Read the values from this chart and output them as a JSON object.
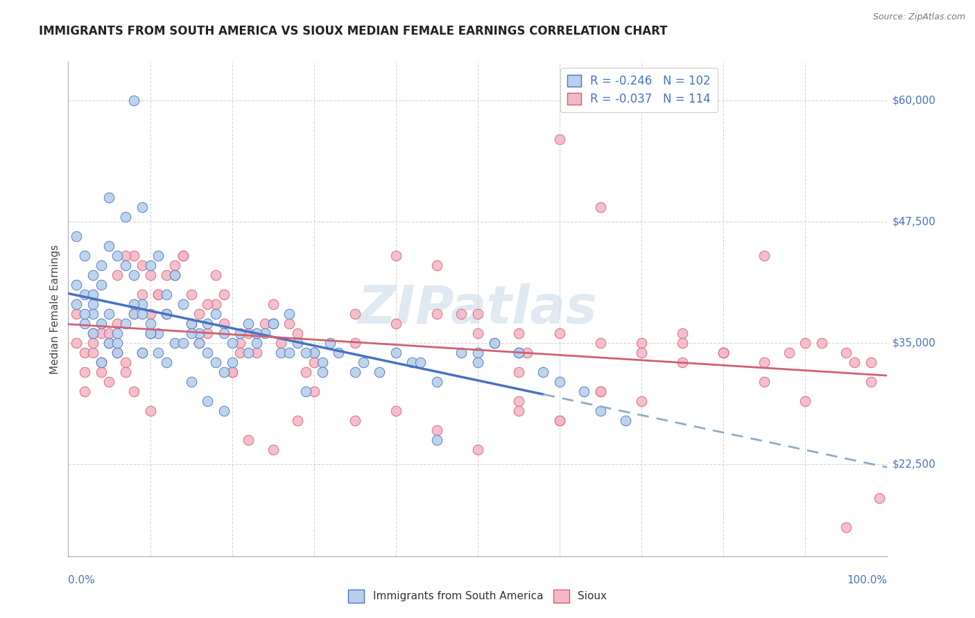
{
  "title": "IMMIGRANTS FROM SOUTH AMERICA VS SIOUX MEDIAN FEMALE EARNINGS CORRELATION CHART",
  "source": "Source: ZipAtlas.com",
  "ylabel": "Median Female Earnings",
  "ylim": [
    13000,
    64000
  ],
  "xlim": [
    0.0,
    1.0
  ],
  "legend_r1": "-0.246",
  "legend_n1": "102",
  "legend_r2": "-0.037",
  "legend_n2": "114",
  "color_blue_fill": "#b8d0ea",
  "color_blue_line": "#4472c4",
  "color_pink_fill": "#f4b8c8",
  "color_pink_line": "#d06070",
  "color_dashed": "#90aac8",
  "watermark": "ZIPatlas",
  "watermark_color": "#c8d8e8",
  "blue_x": [
    0.02,
    0.03,
    0.01,
    0.04,
    0.05,
    0.02,
    0.03,
    0.04,
    0.01,
    0.02,
    0.03,
    0.05,
    0.06,
    0.04,
    0.02,
    0.03,
    0.01,
    0.07,
    0.08,
    0.05,
    0.06,
    0.03,
    0.04,
    0.09,
    0.07,
    0.05,
    0.06,
    0.08,
    0.1,
    0.11,
    0.09,
    0.07,
    0.06,
    0.08,
    0.12,
    0.13,
    0.1,
    0.11,
    0.09,
    0.14,
    0.12,
    0.1,
    0.15,
    0.13,
    0.11,
    0.16,
    0.14,
    0.12,
    0.17,
    0.15,
    0.18,
    0.16,
    0.19,
    0.2,
    0.17,
    0.21,
    0.22,
    0.18,
    0.23,
    0.24,
    0.25,
    0.22,
    0.19,
    0.26,
    0.2,
    0.27,
    0.28,
    0.3,
    0.32,
    0.29,
    0.31,
    0.35,
    0.33,
    0.36,
    0.38,
    0.4,
    0.42,
    0.45,
    0.48,
    0.5,
    0.52,
    0.55,
    0.25,
    0.23,
    0.27,
    0.29,
    0.31,
    0.15,
    0.17,
    0.19,
    0.08,
    0.09,
    0.1,
    0.58,
    0.6,
    0.63,
    0.65,
    0.68,
    0.5,
    0.55,
    0.45,
    0.43
  ],
  "blue_y": [
    44000,
    42000,
    46000,
    43000,
    45000,
    40000,
    38000,
    41000,
    39000,
    37000,
    36000,
    35000,
    34000,
    33000,
    38000,
    39000,
    41000,
    48000,
    60000,
    50000,
    44000,
    40000,
    37000,
    49000,
    43000,
    38000,
    36000,
    42000,
    43000,
    44000,
    39000,
    37000,
    35000,
    38000,
    40000,
    42000,
    37000,
    36000,
    34000,
    39000,
    38000,
    36000,
    37000,
    35000,
    34000,
    36000,
    35000,
    33000,
    37000,
    36000,
    38000,
    35000,
    36000,
    35000,
    34000,
    36000,
    37000,
    33000,
    35000,
    36000,
    37000,
    34000,
    32000,
    34000,
    33000,
    34000,
    35000,
    34000,
    35000,
    34000,
    33000,
    32000,
    34000,
    33000,
    32000,
    34000,
    33000,
    31000,
    34000,
    34000,
    35000,
    34000,
    37000,
    36000,
    38000,
    30000,
    32000,
    31000,
    29000,
    28000,
    39000,
    38000,
    36000,
    32000,
    31000,
    30000,
    28000,
    27000,
    33000,
    34000,
    25000,
    33000
  ],
  "pink_x": [
    0.01,
    0.02,
    0.03,
    0.04,
    0.01,
    0.05,
    0.02,
    0.06,
    0.03,
    0.04,
    0.07,
    0.05,
    0.08,
    0.06,
    0.02,
    0.09,
    0.03,
    0.1,
    0.04,
    0.07,
    0.11,
    0.05,
    0.12,
    0.08,
    0.13,
    0.06,
    0.09,
    0.14,
    0.1,
    0.15,
    0.07,
    0.11,
    0.16,
    0.12,
    0.17,
    0.08,
    0.13,
    0.18,
    0.14,
    0.19,
    0.09,
    0.15,
    0.2,
    0.16,
    0.21,
    0.1,
    0.17,
    0.22,
    0.18,
    0.23,
    0.24,
    0.25,
    0.19,
    0.26,
    0.2,
    0.27,
    0.21,
    0.28,
    0.29,
    0.3,
    0.35,
    0.4,
    0.45,
    0.5,
    0.55,
    0.6,
    0.65,
    0.7,
    0.75,
    0.8,
    0.85,
    0.9,
    0.95,
    0.98,
    0.75,
    0.8,
    0.85,
    0.88,
    0.92,
    0.96,
    0.55,
    0.6,
    0.65,
    0.7,
    0.4,
    0.45,
    0.5,
    0.55,
    0.3,
    0.35,
    0.3,
    0.28,
    0.25,
    0.22,
    0.48,
    0.52,
    0.56,
    0.6,
    0.65,
    0.7,
    0.75,
    0.8,
    0.85,
    0.9,
    0.95,
    0.98,
    0.35,
    0.4,
    0.45,
    0.5,
    0.55,
    0.6,
    0.65,
    0.99
  ],
  "pink_y": [
    35000,
    34000,
    36000,
    33000,
    38000,
    35000,
    32000,
    37000,
    34000,
    36000,
    33000,
    31000,
    44000,
    42000,
    30000,
    43000,
    35000,
    38000,
    32000,
    44000,
    40000,
    36000,
    42000,
    38000,
    43000,
    34000,
    40000,
    44000,
    42000,
    37000,
    32000,
    40000,
    35000,
    38000,
    36000,
    30000,
    42000,
    39000,
    44000,
    37000,
    34000,
    40000,
    32000,
    38000,
    35000,
    28000,
    39000,
    36000,
    42000,
    34000,
    37000,
    39000,
    40000,
    35000,
    32000,
    37000,
    34000,
    36000,
    32000,
    30000,
    38000,
    37000,
    38000,
    38000,
    36000,
    36000,
    35000,
    35000,
    36000,
    34000,
    33000,
    35000,
    34000,
    33000,
    35000,
    34000,
    44000,
    34000,
    35000,
    33000,
    29000,
    27000,
    30000,
    29000,
    44000,
    43000,
    36000,
    32000,
    34000,
    35000,
    33000,
    27000,
    24000,
    25000,
    38000,
    35000,
    34000,
    56000,
    49000,
    34000,
    33000,
    34000,
    31000,
    29000,
    16000,
    31000,
    27000,
    28000,
    26000,
    24000,
    28000,
    27000,
    30000,
    19000
  ]
}
